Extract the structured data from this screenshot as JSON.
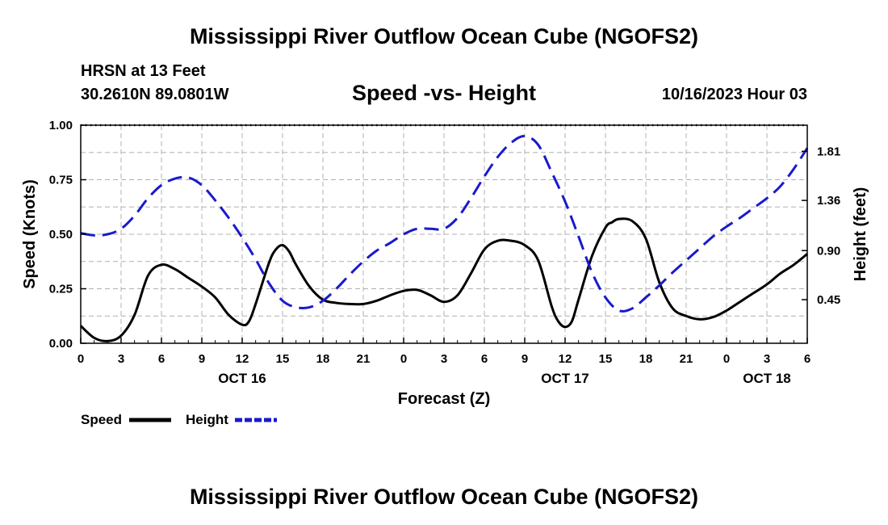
{
  "page": {
    "title_top": "Mississippi River Outflow Ocean Cube (NGOFS2)",
    "title_bottom": "Mississippi River Outflow Ocean Cube (NGOFS2)",
    "station": "HRSN at 13 Feet",
    "coordinates": "30.2610N  89.0801W",
    "subtitle": "Speed -vs- Height",
    "timestamp": "10/16/2023 Hour 03"
  },
  "legend": {
    "speed_label": "Speed",
    "height_label": "Height"
  },
  "colors": {
    "speed": "#000000",
    "height": "#1a1acc",
    "grid": "#b0b0b0"
  },
  "chart_data": {
    "type": "line",
    "title": "Speed -vs- Height",
    "xlabel": "Forecast (Z)",
    "ylabel": "Speed (Knots)",
    "y2label": "Height (feet)",
    "x_range": [
      0,
      54
    ],
    "ylim": [
      0,
      1
    ],
    "y2lim": [
      0.05,
      2.05
    ],
    "x_ticks": [
      0,
      3,
      6,
      9,
      12,
      15,
      18,
      21,
      24,
      27,
      30,
      33,
      36,
      39,
      42,
      45,
      48,
      51,
      54
    ],
    "x_tick_labels": [
      "0",
      "3",
      "6",
      "9",
      "12",
      "15",
      "18",
      "21",
      "0",
      "3",
      "6",
      "9",
      "12",
      "15",
      "18",
      "21",
      "0",
      "3",
      "6"
    ],
    "y_ticks": [
      0,
      0.25,
      0.5,
      0.75,
      1.0
    ],
    "y_tick_labels": [
      "0.00",
      "0.25",
      "0.50",
      "0.75",
      "1.00"
    ],
    "y2_ticks": [
      0.45,
      0.9,
      1.36,
      1.81
    ],
    "y2_tick_labels": [
      "0.45",
      "0.90",
      "1.36",
      "1.81"
    ],
    "date_labels": [
      {
        "x": 12,
        "text": "OCT 16"
      },
      {
        "x": 36,
        "text": "OCT 17"
      },
      {
        "x": 51,
        "text": "OCT 18"
      }
    ],
    "grid": true,
    "legend_position": "bottom-left",
    "series": [
      {
        "name": "Speed",
        "axis": "left",
        "style": "solid",
        "x": [
          0,
          1,
          2,
          3,
          4,
          5,
          6,
          7,
          8,
          9,
          10,
          11,
          12,
          12.5,
          13,
          14,
          14.5,
          15,
          15.5,
          16,
          17,
          18,
          19,
          20,
          21,
          22,
          23,
          24,
          25,
          26,
          27,
          28,
          29,
          30,
          31,
          32,
          33,
          34,
          35,
          35.5,
          36,
          36.5,
          37,
          38,
          39,
          39.5,
          40,
          41,
          42,
          43,
          44,
          45,
          46,
          47,
          48,
          49,
          50,
          51,
          52,
          53,
          54
        ],
        "y": [
          0.08,
          0.025,
          0.01,
          0.035,
          0.13,
          0.31,
          0.36,
          0.34,
          0.3,
          0.26,
          0.21,
          0.13,
          0.085,
          0.1,
          0.18,
          0.37,
          0.43,
          0.45,
          0.42,
          0.36,
          0.26,
          0.2,
          0.185,
          0.18,
          0.18,
          0.195,
          0.22,
          0.24,
          0.245,
          0.22,
          0.19,
          0.22,
          0.32,
          0.43,
          0.47,
          0.47,
          0.45,
          0.38,
          0.17,
          0.1,
          0.075,
          0.1,
          0.2,
          0.4,
          0.53,
          0.555,
          0.57,
          0.56,
          0.48,
          0.28,
          0.16,
          0.125,
          0.11,
          0.12,
          0.15,
          0.19,
          0.23,
          0.27,
          0.32,
          0.36,
          0.41
        ]
      },
      {
        "name": "Height",
        "axis": "right",
        "style": "dashed",
        "x": [
          0,
          1,
          2,
          3,
          4,
          5,
          6,
          7,
          8,
          9,
          10,
          11,
          12,
          13,
          14,
          15,
          16,
          17,
          18,
          19,
          20,
          21,
          22,
          23,
          24,
          25,
          26,
          27,
          28,
          29,
          30,
          31,
          32,
          33,
          34,
          35,
          36,
          37,
          38,
          39,
          40,
          41,
          42,
          43,
          44,
          45,
          46,
          47,
          48,
          49,
          50,
          51,
          52,
          53,
          54
        ],
        "y": [
          1.06,
          1.04,
          1.05,
          1.1,
          1.22,
          1.38,
          1.5,
          1.56,
          1.57,
          1.5,
          1.36,
          1.2,
          1.02,
          0.82,
          0.6,
          0.44,
          0.38,
          0.38,
          0.44,
          0.55,
          0.68,
          0.8,
          0.9,
          0.97,
          1.05,
          1.1,
          1.1,
          1.1,
          1.2,
          1.38,
          1.58,
          1.76,
          1.89,
          1.95,
          1.87,
          1.62,
          1.35,
          1.03,
          0.7,
          0.47,
          0.35,
          0.37,
          0.47,
          0.58,
          0.7,
          0.81,
          0.92,
          1.03,
          1.12,
          1.2,
          1.29,
          1.38,
          1.49,
          1.65,
          1.84
        ]
      }
    ]
  }
}
